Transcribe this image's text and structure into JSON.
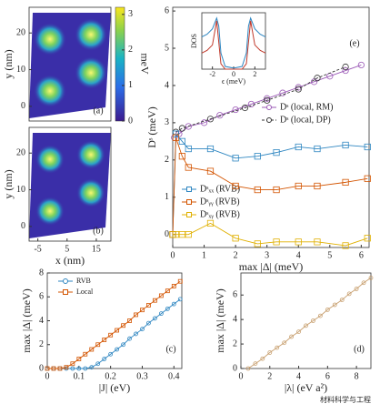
{
  "chart_data": [
    {
      "type": "heatmap",
      "label": "(a)",
      "ylabel": "y (nm)",
      "ylim": [
        -4,
        27
      ],
      "yticks": [
        0,
        10,
        20
      ],
      "xlim": [
        -8,
        20
      ],
      "colorbar": {
        "lim": [
          0,
          3.2
        ],
        "ticks": [
          0,
          1,
          2,
          3
        ],
        "label": "meV"
      }
    },
    {
      "type": "heatmap",
      "label": "(b)",
      "ylabel": "y (nm)",
      "xlabel": "x (nm)",
      "ylim": [
        -4,
        27
      ],
      "yticks": [
        0,
        10,
        20
      ],
      "xlim": [
        -8,
        20
      ],
      "xticks": [
        -5,
        5,
        15
      ]
    },
    {
      "type": "line",
      "label": "(e)",
      "xlabel": "max |Δ| (meV)",
      "ylabel": "Dˢ (meV)",
      "xlim": [
        0,
        6.25
      ],
      "ylim": [
        -0.35,
        6.1
      ],
      "xticks": [
        0,
        1,
        2,
        3,
        4,
        5,
        6
      ],
      "yticks": [
        0,
        1,
        2,
        3,
        4,
        5,
        6
      ],
      "series": [
        {
          "name": "Dˢ (local, RM)",
          "color": "#9b59b6",
          "marker": "circle",
          "x": [
            0.05,
            0.2,
            0.5,
            1.0,
            1.5,
            2.0,
            2.5,
            3.0,
            3.5,
            4.0,
            4.5,
            5.0,
            5.5,
            6.0
          ],
          "values": [
            2.6,
            2.7,
            2.9,
            3.0,
            3.2,
            3.35,
            3.5,
            3.65,
            3.8,
            3.95,
            4.1,
            4.25,
            4.4,
            4.55
          ]
        },
        {
          "name": "Dˢ (local, DP)",
          "color": "#333333",
          "marker": "circle",
          "dash": true,
          "x": [
            0.1,
            0.3,
            1.2,
            2.3,
            3.0,
            4.0,
            4.6,
            5.5
          ],
          "values": [
            2.75,
            2.85,
            3.1,
            3.4,
            3.6,
            3.9,
            4.2,
            4.5
          ]
        },
        {
          "name": "Dˢₓₓ (RVB)",
          "color": "#2e86c1",
          "marker": "square",
          "x": [
            0,
            0.1,
            0.3,
            0.5,
            1.2,
            2.0,
            2.7,
            3.3,
            4.0,
            4.6,
            5.5,
            6.2
          ],
          "values": [
            0,
            2.7,
            2.5,
            2.3,
            2.3,
            2.05,
            2.1,
            2.2,
            2.35,
            2.3,
            2.4,
            2.35
          ]
        },
        {
          "name": "Dˢᵧᵧ (RVB)",
          "color": "#d35400",
          "marker": "square",
          "x": [
            0,
            0.1,
            0.3,
            0.5,
            1.2,
            2.0,
            2.7,
            3.3,
            4.0,
            4.6,
            5.5,
            6.2
          ],
          "values": [
            0,
            2.6,
            2.1,
            1.8,
            1.7,
            1.3,
            1.2,
            1.2,
            1.3,
            1.3,
            1.4,
            1.5
          ]
        },
        {
          "name": "Dˢₓᵧ (RVB)",
          "color": "#e0b000",
          "marker": "square",
          "x": [
            0,
            0.1,
            0.3,
            0.5,
            1.2,
            2.0,
            2.7,
            3.3,
            4.0,
            4.6,
            5.5,
            6.2
          ],
          "values": [
            0,
            0,
            0,
            0,
            0.3,
            -0.1,
            -0.25,
            -0.2,
            -0.2,
            -0.2,
            -0.3,
            -0.1
          ]
        }
      ]
    },
    {
      "type": "line",
      "xlabel": "ϵ (meV)",
      "ylabel": "DOS",
      "xlim": [
        -3,
        3
      ],
      "ylim": [
        0,
        1.05
      ],
      "xticks": [
        -2,
        0,
        2
      ],
      "series": [
        {
          "color": "#2e86c1",
          "x": [
            -3,
            -2.5,
            -2,
            -1.6,
            -1.4,
            -1.2,
            -0.8,
            0,
            0.8,
            1.2,
            1.4,
            1.6,
            2,
            2.5,
            3
          ],
          "values": [
            0.6,
            0.65,
            0.75,
            0.95,
            0.8,
            0.3,
            0.05,
            0.02,
            0.05,
            0.3,
            0.8,
            0.95,
            0.75,
            0.65,
            0.6
          ]
        },
        {
          "color": "#c0392b",
          "x": [
            -3,
            -2.5,
            -2,
            -1.6,
            -1.4,
            -1.2,
            -0.8,
            0,
            0.8,
            1.2,
            1.4,
            1.6,
            2,
            2.5,
            3
          ],
          "values": [
            0.3,
            0.35,
            0.45,
            0.9,
            0.5,
            0.1,
            0,
            0,
            0,
            0.1,
            0.5,
            0.9,
            0.45,
            0.35,
            0.3
          ]
        }
      ]
    },
    {
      "type": "line",
      "label": "(c)",
      "xlabel": "|J| (eV)",
      "ylabel": "max |Δ| (meV)",
      "xlim": [
        0,
        0.425
      ],
      "ylim": [
        0,
        8
      ],
      "xticks": [
        0,
        0.1,
        0.2,
        0.3,
        0.4
      ],
      "yticks": [
        0,
        2,
        4,
        6,
        8
      ],
      "series": [
        {
          "name": "RVB",
          "color": "#2e86c1",
          "marker": "circle",
          "x": [
            0,
            0.02,
            0.04,
            0.06,
            0.08,
            0.1,
            0.12,
            0.14,
            0.16,
            0.18,
            0.2,
            0.22,
            0.24,
            0.26,
            0.28,
            0.3,
            0.32,
            0.34,
            0.36,
            0.38,
            0.4,
            0.42
          ],
          "values": [
            0,
            0,
            0,
            0,
            0,
            0,
            0,
            0.1,
            0.4,
            0.8,
            1.2,
            1.6,
            2.0,
            2.5,
            2.9,
            3.3,
            3.8,
            4.2,
            4.6,
            5.0,
            5.4,
            5.8
          ]
        },
        {
          "name": "Local",
          "color": "#d35400",
          "marker": "square",
          "x": [
            0,
            0.02,
            0.04,
            0.06,
            0.08,
            0.1,
            0.12,
            0.14,
            0.16,
            0.18,
            0.2,
            0.22,
            0.24,
            0.26,
            0.28,
            0.3,
            0.32,
            0.34,
            0.36,
            0.38,
            0.4,
            0.42
          ],
          "values": [
            0,
            0,
            0,
            0.1,
            0.4,
            0.8,
            1.2,
            1.6,
            2.0,
            2.4,
            2.8,
            3.2,
            3.6,
            4.0,
            4.5,
            4.9,
            5.3,
            5.7,
            6.1,
            6.5,
            6.9,
            7.3
          ]
        }
      ]
    },
    {
      "type": "line",
      "label": "(d)",
      "xlabel": "|λ| (eV a²)",
      "ylabel": "max |Δ| (meV)",
      "xlim": [
        0,
        9
      ],
      "ylim": [
        0,
        7.8
      ],
      "xticks": [
        0,
        2,
        4,
        6,
        8
      ],
      "yticks": [
        0,
        2,
        4,
        6
      ],
      "series": [
        {
          "color": "#c8a070",
          "marker": "circle",
          "x": [
            0.5,
            1,
            1.5,
            2,
            2.5,
            3,
            3.5,
            4,
            4.5,
            5,
            5.5,
            6,
            6.5,
            7,
            7.5,
            8,
            8.5,
            9
          ],
          "values": [
            0,
            0.4,
            0.8,
            1.3,
            1.7,
            2.1,
            2.6,
            3.0,
            3.5,
            3.9,
            4.3,
            4.8,
            5.2,
            5.6,
            6.1,
            6.5,
            7.0,
            7.4
          ]
        }
      ]
    }
  ],
  "watermark": "材料科学与工程"
}
